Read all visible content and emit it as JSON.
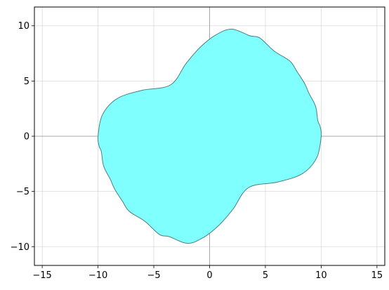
{
  "chart_data": {
    "type": "area",
    "title": "",
    "xlabel": "",
    "ylabel": "",
    "xlim": [
      -15.7,
      15.7
    ],
    "ylim": [
      -11.7,
      11.7
    ],
    "aspect": "equal",
    "grid": true,
    "x_ticks": [
      -15,
      -10,
      -5,
      0,
      5,
      10,
      15
    ],
    "y_ticks": [
      -10,
      -5,
      0,
      5,
      10
    ],
    "x_tick_labels": [
      "−15",
      "−10",
      "−5",
      "0",
      "5",
      "10",
      "15"
    ],
    "y_tick_labels": [
      "−10",
      "−5",
      "0",
      "5",
      "10"
    ],
    "fill_color": "#80ffff",
    "edge_color": "#4d7f7f",
    "zero_line_color": "#808080",
    "shape": {
      "boundary_points": [
        [
          10,
          0
        ],
        [
          9.6,
          -1.95
        ],
        [
          8.3,
          -3.4
        ],
        [
          6.1,
          -4.15
        ],
        [
          3.5,
          -4.65
        ],
        [
          2.1,
          -6.6
        ],
        [
          0.8,
          -8.1
        ],
        [
          -0.6,
          -9.2
        ],
        [
          -2.0,
          -9.7
        ],
        [
          -3.6,
          -9.1
        ],
        [
          -4.5,
          -8.9
        ],
        [
          -5.8,
          -7.7
        ],
        [
          -7.2,
          -6.8
        ],
        [
          -7.8,
          -5.9
        ],
        [
          -8.5,
          -4.8
        ],
        [
          -8.9,
          -3.9
        ],
        [
          -9.5,
          -2.7
        ],
        [
          -9.7,
          -1.4
        ],
        [
          -9.9,
          -0.9
        ],
        [
          -10,
          0
        ],
        [
          -9.6,
          1.95
        ],
        [
          -8.3,
          3.4
        ],
        [
          -6.1,
          4.15
        ],
        [
          -3.5,
          4.65
        ],
        [
          -2.1,
          6.6
        ],
        [
          -0.8,
          8.1
        ],
        [
          0.6,
          9.2
        ],
        [
          2.0,
          9.7
        ],
        [
          3.6,
          9.1
        ],
        [
          4.5,
          8.9
        ],
        [
          5.8,
          7.7
        ],
        [
          7.2,
          6.8
        ],
        [
          7.8,
          5.9
        ],
        [
          8.5,
          4.8
        ],
        [
          8.9,
          3.9
        ],
        [
          9.5,
          2.7
        ],
        [
          9.7,
          1.4
        ],
        [
          9.9,
          0.9
        ]
      ]
    }
  }
}
